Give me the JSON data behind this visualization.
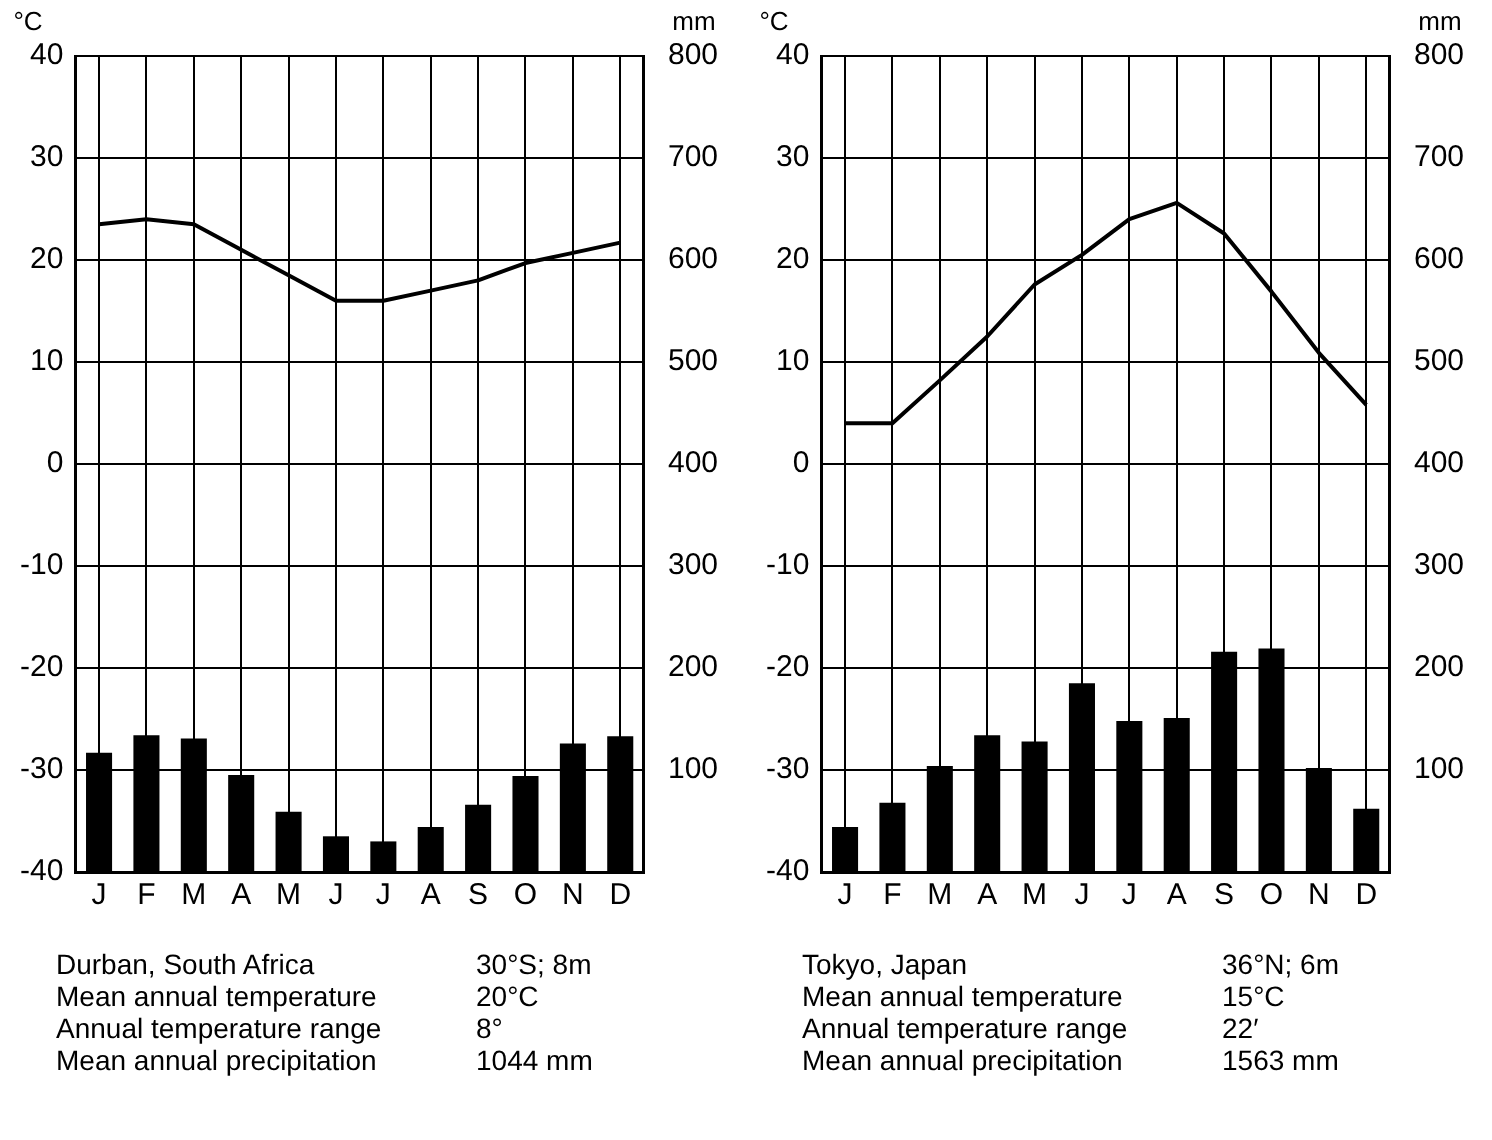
{
  "chart_data": [
    {
      "type": "line",
      "ylabel": "°C",
      "y2label": "mm",
      "categories": [
        "J",
        "F",
        "M",
        "A",
        "M",
        "J",
        "J",
        "A",
        "S",
        "O",
        "N",
        "D"
      ],
      "series": [
        {
          "type": "bar",
          "axis": "y2",
          "color": "#000000",
          "values": [
            117,
            134,
            131,
            95,
            59,
            35,
            30,
            44,
            66,
            94,
            126,
            133
          ]
        },
        {
          "color": "#000000",
          "values": [
            23.5,
            24,
            23.5,
            21,
            18.5,
            16,
            16,
            17,
            18,
            19.7,
            20.7,
            21.7
          ]
        }
      ],
      "ylim": [
        -40,
        40
      ],
      "yticks": [
        -40,
        -30,
        -20,
        -10,
        0,
        10,
        20,
        30,
        40
      ],
      "y2lim": [
        0,
        800
      ],
      "y2ticks": [
        100,
        200,
        300,
        400,
        500,
        600,
        700,
        800
      ],
      "grid": true,
      "annotations": [
        "Durban, South Africa",
        "30°S; 8m",
        "Mean annual temperature",
        "20°C",
        "Annual temperature range",
        "8°",
        "Mean annual precipitation",
        "1044 mm"
      ]
    },
    {
      "type": "line",
      "ylabel": "°C",
      "y2label": "mm",
      "categories": [
        "J",
        "F",
        "M",
        "A",
        "M",
        "J",
        "J",
        "A",
        "S",
        "O",
        "N",
        "D"
      ],
      "series": [
        {
          "type": "bar",
          "axis": "y2",
          "color": "#000000",
          "values": [
            44,
            68,
            104,
            134,
            128,
            185,
            148,
            151,
            216,
            219,
            102,
            62
          ]
        },
        {
          "color": "#000000",
          "values": [
            4,
            4,
            8.2,
            12.5,
            17.6,
            20.5,
            24,
            25.6,
            22.6,
            16.9,
            10.9,
            5.8
          ]
        }
      ],
      "ylim": [
        -40,
        40
      ],
      "yticks": [
        -40,
        -30,
        -20,
        -10,
        0,
        10,
        20,
        30,
        40
      ],
      "y2lim": [
        0,
        800
      ],
      "y2ticks": [
        100,
        200,
        300,
        400,
        500,
        600,
        700,
        800
      ],
      "grid": true,
      "annotations": [
        "Tokyo, Japan",
        "36°N; 6m",
        "Mean annual temperature",
        "15°C",
        "Annual temperature range",
        "22′",
        "Mean annual precipitation",
        "1563 mm"
      ]
    }
  ]
}
